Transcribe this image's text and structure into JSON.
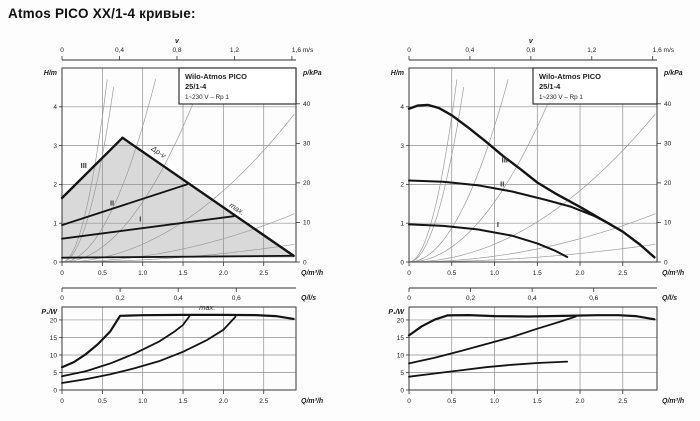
{
  "page_title": "Atmos PICO XX/1-4 кривые:",
  "colors": {
    "series": "#141414",
    "grid": "#8f8f8f",
    "system_curve": "#9a9a9a",
    "border": "#4a4a4a",
    "tick": "#333333",
    "text": "#222222",
    "region_fill": "#d9d9d9",
    "infobox_border": "#333333",
    "infobox_fill": "#ffffff"
  },
  "chart_data": [
    {
      "id": "left-head",
      "type": "line",
      "infobox": [
        "Wilo-Atmos PICO",
        "25/1-4",
        "1~230 V – Rp 1"
      ],
      "x_axis": {
        "name": "Q/m³/h",
        "max": 2.9,
        "ticks": [
          {
            "v": 0,
            "t": "0"
          },
          {
            "v": 0.5,
            "t": "0.5"
          },
          {
            "v": 1,
            "t": "1.0"
          },
          {
            "v": 1.5,
            "t": "1.5"
          },
          {
            "v": 2,
            "t": "2.0"
          },
          {
            "v": 2.5,
            "t": "2.5"
          }
        ]
      },
      "y_axis": {
        "name": "H/m",
        "max": 5,
        "ticks": [
          {
            "v": 0,
            "t": "0"
          },
          {
            "v": 1,
            "t": "1"
          },
          {
            "v": 2,
            "t": "2"
          },
          {
            "v": 3,
            "t": "3"
          },
          {
            "v": 4,
            "t": "4"
          }
        ]
      },
      "y2_axis": {
        "name": "p/kPa",
        "kpa_to_m": 0.10194,
        "ticks": [
          {
            "v": 0,
            "t": "0"
          },
          {
            "v": 10,
            "t": "10"
          },
          {
            "v": 20,
            "t": "20"
          },
          {
            "v": 30,
            "t": "30"
          },
          {
            "v": 40,
            "t": "40"
          }
        ]
      },
      "v_axis": {
        "name": "v",
        "q_per_unit": 1.781,
        "name_at": 0.8,
        "ticks": [
          {
            "v": 0,
            "t": "0"
          },
          {
            "v": 0.4,
            "t": "0,4"
          },
          {
            "v": 0.8,
            "t": "0,8"
          },
          {
            "v": 1.2,
            "t": "1,2"
          },
          {
            "v": 1.6,
            "t": "1,6 m/s"
          }
        ]
      },
      "ls_axis": {
        "name": "Q/l/s",
        "q_per_unit": 3.6,
        "ticks": [
          {
            "v": 0,
            "t": "0"
          },
          {
            "v": 0.2,
            "t": "0,2"
          },
          {
            "v": 0.4,
            "t": "0,4"
          },
          {
            "v": 0.6,
            "t": "0,6"
          }
        ]
      },
      "system_curves": [
        15,
        11,
        3.5,
        1.55,
        0.46,
        0.15,
        0.055
      ],
      "region": {
        "points": [
          [
            0,
            0.11
          ],
          [
            0,
            1.65
          ],
          [
            0.75,
            3.2
          ],
          [
            2.87,
            0.16
          ],
          [
            2.87,
            0.11
          ]
        ]
      },
      "series": [
        {
          "name": "dpv-rise-III",
          "w": 2.4,
          "points": [
            [
              0,
              1.65
            ],
            [
              0.75,
              3.2
            ]
          ]
        },
        {
          "name": "max-curve",
          "w": 2.4,
          "points": [
            [
              0.75,
              3.2
            ],
            [
              2.87,
              0.16
            ]
          ]
        },
        {
          "name": "min-floor",
          "w": 1.8,
          "points": [
            [
              0,
              0.11
            ],
            [
              2.87,
              0.16
            ]
          ]
        },
        {
          "name": "dpv-II",
          "w": 1.8,
          "points": [
            [
              0,
              0.95
            ],
            [
              1.55,
              2.0
            ]
          ]
        },
        {
          "name": "dpv-I",
          "w": 1.8,
          "points": [
            [
              0,
              0.6
            ],
            [
              2.13,
              1.18
            ]
          ]
        }
      ],
      "labels": [
        {
          "t": "III",
          "x": 0.27,
          "y": 2.42
        },
        {
          "t": "II",
          "x": 0.62,
          "y": 1.45
        },
        {
          "t": "I",
          "x": 0.97,
          "y": 1.05
        },
        {
          "t": "Δp-v",
          "x": 1.18,
          "y": 2.78,
          "r": 34,
          "i": 1
        },
        {
          "t": "max.",
          "x": 2.15,
          "y": 1.32,
          "r": 34,
          "i": 1
        }
      ]
    },
    {
      "id": "right-head",
      "type": "line",
      "infobox": [
        "Wilo-Atmos PICO",
        "25/1-4",
        "1~230 V – Rp 1"
      ],
      "x_axis": {
        "name": "Q/m³/h",
        "max": 2.9,
        "ticks": [
          {
            "v": 0,
            "t": "0"
          },
          {
            "v": 0.5,
            "t": "0.5"
          },
          {
            "v": 1,
            "t": "1.0"
          },
          {
            "v": 1.5,
            "t": "1.5"
          },
          {
            "v": 2,
            "t": "2.0"
          },
          {
            "v": 2.5,
            "t": "2.5"
          }
        ]
      },
      "y_axis": {
        "name": "H/m",
        "max": 5,
        "ticks": [
          {
            "v": 0,
            "t": "0"
          },
          {
            "v": 1,
            "t": "1"
          },
          {
            "v": 2,
            "t": "2"
          },
          {
            "v": 3,
            "t": "3"
          },
          {
            "v": 4,
            "t": "4"
          }
        ]
      },
      "y2_axis": {
        "name": "p/kPa",
        "kpa_to_m": 0.10194,
        "ticks": [
          {
            "v": 0,
            "t": "0"
          },
          {
            "v": 10,
            "t": "10"
          },
          {
            "v": 20,
            "t": "20"
          },
          {
            "v": 30,
            "t": "30"
          },
          {
            "v": 40,
            "t": "40"
          }
        ]
      },
      "v_axis": {
        "name": "v",
        "q_per_unit": 1.781,
        "name_at": 0.8,
        "ticks": [
          {
            "v": 0,
            "t": "0"
          },
          {
            "v": 0.4,
            "t": "0,4"
          },
          {
            "v": 0.8,
            "t": "0,8"
          },
          {
            "v": 1.2,
            "t": "1,2"
          },
          {
            "v": 1.6,
            "t": "1,6 m/s"
          }
        ]
      },
      "ls_axis": {
        "name": "Q/l/s",
        "q_per_unit": 3.6,
        "ticks": [
          {
            "v": 0,
            "t": "0"
          },
          {
            "v": 0.2,
            "t": "0,2"
          },
          {
            "v": 0.4,
            "t": "0,4"
          },
          {
            "v": 0.6,
            "t": "0,6"
          }
        ]
      },
      "system_curves": [
        15,
        11,
        3.5,
        1.55,
        0.46,
        0.15,
        0.055
      ],
      "series": [
        {
          "name": "speed-III",
          "w": 2.4,
          "points": [
            [
              0,
              3.95
            ],
            [
              0.1,
              4.03
            ],
            [
              0.22,
              4.05
            ],
            [
              0.35,
              3.97
            ],
            [
              0.5,
              3.78
            ],
            [
              0.7,
              3.45
            ],
            [
              0.9,
              3.1
            ],
            [
              1.1,
              2.73
            ],
            [
              1.3,
              2.4
            ],
            [
              1.5,
              2.05
            ],
            [
              1.7,
              1.78
            ],
            [
              2.0,
              1.42
            ],
            [
              2.25,
              1.1
            ],
            [
              2.5,
              0.78
            ],
            [
              2.7,
              0.45
            ],
            [
              2.87,
              0.12
            ]
          ]
        },
        {
          "name": "speed-II",
          "w": 2.0,
          "points": [
            [
              0,
              2.1
            ],
            [
              0.4,
              2.07
            ],
            [
              0.8,
              1.98
            ],
            [
              1.2,
              1.82
            ],
            [
              1.6,
              1.6
            ],
            [
              1.9,
              1.42
            ],
            [
              2.15,
              1.2
            ],
            [
              2.35,
              0.98
            ]
          ]
        },
        {
          "name": "speed-I",
          "w": 2.0,
          "points": [
            [
              0,
              0.97
            ],
            [
              0.4,
              0.93
            ],
            [
              0.8,
              0.84
            ],
            [
              1.2,
              0.68
            ],
            [
              1.5,
              0.48
            ],
            [
              1.7,
              0.3
            ],
            [
              1.85,
              0.13
            ]
          ]
        }
      ],
      "labels": [
        {
          "t": "III",
          "x": 1.12,
          "y": 2.56
        },
        {
          "t": "II",
          "x": 1.09,
          "y": 1.95
        },
        {
          "t": "I",
          "x": 1.04,
          "y": 0.9
        }
      ]
    },
    {
      "id": "left-power",
      "type": "line",
      "x_axis": {
        "name": "Q/m³/h",
        "max": 2.9,
        "ticks": [
          {
            "v": 0,
            "t": "0"
          },
          {
            "v": 0.5,
            "t": "0.5"
          },
          {
            "v": 1,
            "t": "1.0"
          },
          {
            "v": 1.5,
            "t": "1.5"
          },
          {
            "v": 2,
            "t": "2.0"
          },
          {
            "v": 2.5,
            "t": "2.5"
          }
        ]
      },
      "y_axis": {
        "name": "P₁/W",
        "max": 23.7,
        "ticks": [
          {
            "v": 0,
            "t": "0"
          },
          {
            "v": 5,
            "t": "5"
          },
          {
            "v": 10,
            "t": "10"
          },
          {
            "v": 15,
            "t": "15"
          },
          {
            "v": 20,
            "t": "20"
          }
        ]
      },
      "series": [
        {
          "name": "power-III",
          "w": 2.2,
          "points": [
            [
              0,
              6.5
            ],
            [
              0.15,
              8.0
            ],
            [
              0.3,
              10.3
            ],
            [
              0.45,
              13.2
            ],
            [
              0.6,
              16.8
            ],
            [
              0.72,
              21.2
            ],
            [
              1.0,
              21.35
            ],
            [
              1.5,
              21.45
            ],
            [
              2.0,
              21.45
            ],
            [
              2.4,
              21.4
            ],
            [
              2.65,
              21.1
            ],
            [
              2.87,
              20.3
            ]
          ]
        },
        {
          "name": "power-II",
          "w": 1.8,
          "points": [
            [
              0,
              3.9
            ],
            [
              0.3,
              5.4
            ],
            [
              0.6,
              7.6
            ],
            [
              0.9,
              10.4
            ],
            [
              1.2,
              13.8
            ],
            [
              1.4,
              16.8
            ],
            [
              1.5,
              18.6
            ],
            [
              1.58,
              21.1
            ]
          ]
        },
        {
          "name": "power-I",
          "w": 1.8,
          "points": [
            [
              0,
              2.0
            ],
            [
              0.3,
              3.1
            ],
            [
              0.6,
              4.5
            ],
            [
              0.9,
              6.2
            ],
            [
              1.2,
              8.2
            ],
            [
              1.5,
              10.9
            ],
            [
              1.8,
              14.3
            ],
            [
              2.0,
              17.2
            ],
            [
              2.15,
              20.9
            ]
          ]
        }
      ],
      "labels": [
        {
          "t": "max.",
          "x": 1.8,
          "y": 22.9,
          "i": 1
        }
      ]
    },
    {
      "id": "right-power",
      "type": "line",
      "x_axis": {
        "name": "Q/m³/h",
        "max": 2.9,
        "ticks": [
          {
            "v": 0,
            "t": "0"
          },
          {
            "v": 0.5,
            "t": "0.5"
          },
          {
            "v": 1,
            "t": "1.0"
          },
          {
            "v": 1.5,
            "t": "1.5"
          },
          {
            "v": 2,
            "t": "2.0"
          },
          {
            "v": 2.5,
            "t": "2.5"
          }
        ]
      },
      "y_axis": {
        "name": "P₁/W",
        "max": 23.7,
        "ticks": [
          {
            "v": 0,
            "t": "0"
          },
          {
            "v": 5,
            "t": "5"
          },
          {
            "v": 10,
            "t": "10"
          },
          {
            "v": 15,
            "t": "15"
          },
          {
            "v": 20,
            "t": "20"
          }
        ]
      },
      "series": [
        {
          "name": "power-III",
          "w": 2.2,
          "points": [
            [
              0,
              15.6
            ],
            [
              0.15,
              18.2
            ],
            [
              0.3,
              20.1
            ],
            [
              0.45,
              21.3
            ],
            [
              0.7,
              21.4
            ],
            [
              1.0,
              21.1
            ],
            [
              1.4,
              21.0
            ],
            [
              1.8,
              21.15
            ],
            [
              2.2,
              21.35
            ],
            [
              2.45,
              21.35
            ],
            [
              2.65,
              21.1
            ],
            [
              2.87,
              20.2
            ]
          ]
        },
        {
          "name": "power-II",
          "w": 1.8,
          "points": [
            [
              0,
              7.6
            ],
            [
              0.3,
              9.2
            ],
            [
              0.6,
              11.1
            ],
            [
              0.9,
              13.1
            ],
            [
              1.2,
              15.1
            ],
            [
              1.5,
              17.5
            ],
            [
              1.75,
              19.4
            ],
            [
              1.95,
              21.0
            ]
          ]
        },
        {
          "name": "power-I",
          "w": 1.8,
          "points": [
            [
              0,
              3.8
            ],
            [
              0.3,
              4.7
            ],
            [
              0.6,
              5.6
            ],
            [
              0.9,
              6.5
            ],
            [
              1.2,
              7.2
            ],
            [
              1.5,
              7.7
            ],
            [
              1.85,
              8.1
            ]
          ]
        }
      ],
      "labels": []
    }
  ]
}
